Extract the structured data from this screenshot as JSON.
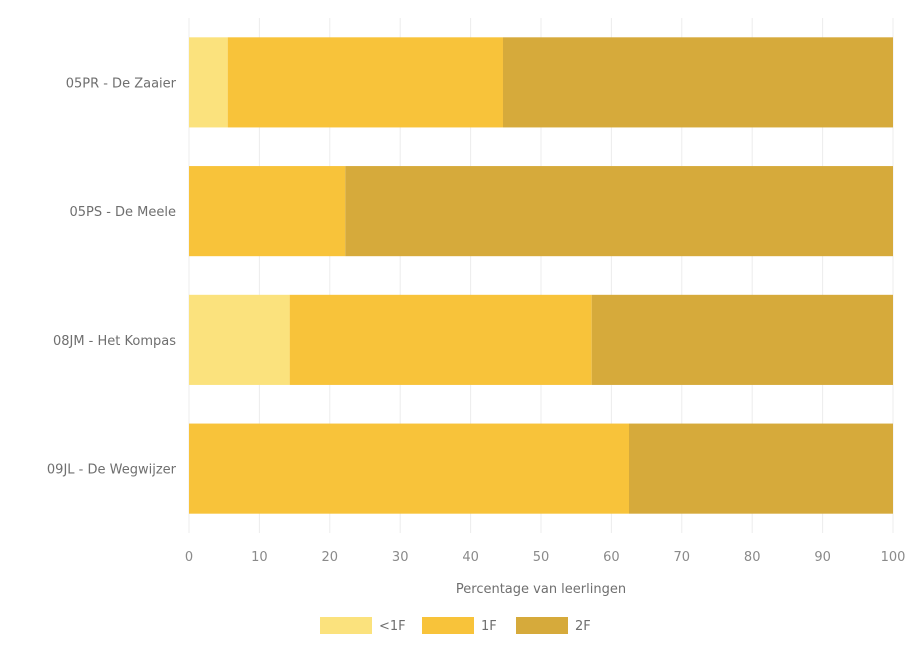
{
  "chart_data": {
    "type": "bar",
    "orientation": "horizontal",
    "stacked": true,
    "categories": [
      "05PR - De Zaaier",
      "05PS - De Meele",
      "08JM - Het Kompas",
      "09JL - De Wegwijzer"
    ],
    "series": [
      {
        "name": "<1F",
        "color": "#fbe27d",
        "values": [
          5.5,
          0,
          14.3,
          0
        ]
      },
      {
        "name": "1F",
        "color": "#f8c33a",
        "values": [
          39.1,
          22.2,
          42.9,
          62.5
        ]
      },
      {
        "name": "2F",
        "color": "#d6aa3b",
        "values": [
          55.4,
          77.8,
          42.8,
          37.5
        ]
      }
    ],
    "xlabel": "Percentage van leerlingen",
    "ylabel": "",
    "xlim": [
      0,
      100
    ],
    "xticks": [
      "0",
      "10",
      "20",
      "30",
      "40",
      "50",
      "60",
      "70",
      "80",
      "90",
      "100"
    ],
    "grid": "vertical",
    "legend": "bottom-center"
  }
}
